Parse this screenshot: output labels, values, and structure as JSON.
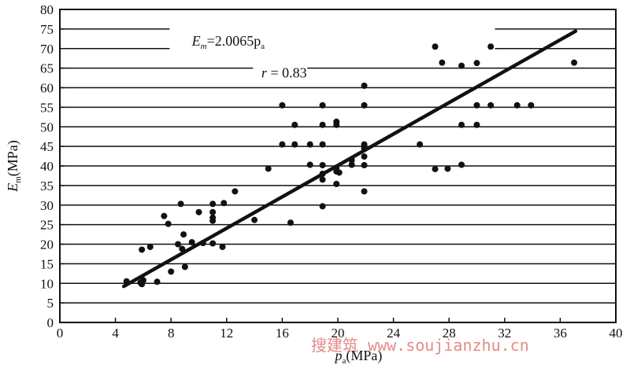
{
  "chart_data": {
    "type": "scatter",
    "xlabel": "p",
    "xlabel_sub": "a",
    "xlabel_unit": "(MPa)",
    "ylabel": "E",
    "ylabel_sub": "m",
    "ylabel_unit": "(MPa)",
    "xlim": [
      0,
      40
    ],
    "ylim": [
      0,
      80
    ],
    "x_ticks": [
      "0",
      "4",
      "8",
      "12",
      "16",
      "20",
      "24",
      "28",
      "32",
      "36",
      "40"
    ],
    "y_ticks": [
      "0",
      "5",
      "10",
      "15",
      "20",
      "25",
      "30",
      "35",
      "40",
      "45",
      "50",
      "55",
      "60",
      "65",
      "70",
      "75",
      "80"
    ],
    "grid": "horizontal",
    "annotations": {
      "equation": "E",
      "equation_sub": "m",
      "equation_rhs": "=2.0065p",
      "equation_rhs_sub": "a",
      "r_text": "r",
      "r_value": " = 0.83"
    },
    "fit_line": {
      "slope": 2.0065,
      "x_start": 4.6,
      "x_end": 37.1
    },
    "points": [
      [
        4.8,
        10.5
      ],
      [
        5.8,
        10.2
      ],
      [
        6.0,
        10.8
      ],
      [
        7.0,
        10.4
      ],
      [
        5.9,
        9.8
      ],
      [
        5.9,
        18.6
      ],
      [
        6.5,
        19.3
      ],
      [
        7.5,
        27.2
      ],
      [
        7.8,
        25.2
      ],
      [
        8.0,
        13.0
      ],
      [
        8.5,
        20.0
      ],
      [
        8.7,
        30.3
      ],
      [
        8.8,
        18.8
      ],
      [
        8.9,
        22.5
      ],
      [
        9.0,
        14.2
      ],
      [
        9.5,
        20.5
      ],
      [
        10.0,
        28.2
      ],
      [
        10.3,
        20.3
      ],
      [
        11.0,
        30.3
      ],
      [
        11.0,
        28.2
      ],
      [
        11.0,
        26.8
      ],
      [
        11.0,
        26.0
      ],
      [
        11.0,
        20.2
      ],
      [
        11.7,
        19.3
      ],
      [
        11.8,
        30.5
      ],
      [
        12.6,
        33.5
      ],
      [
        14.0,
        26.2
      ],
      [
        15.0,
        39.3
      ],
      [
        16.0,
        55.5
      ],
      [
        16.0,
        45.5
      ],
      [
        16.6,
        25.5
      ],
      [
        16.9,
        50.5
      ],
      [
        16.9,
        45.5
      ],
      [
        18.0,
        45.5
      ],
      [
        18.0,
        40.3
      ],
      [
        18.9,
        55.5
      ],
      [
        18.9,
        50.5
      ],
      [
        18.9,
        45.5
      ],
      [
        18.9,
        40.2
      ],
      [
        18.9,
        38.0
      ],
      [
        18.9,
        36.5
      ],
      [
        18.9,
        29.7
      ],
      [
        19.9,
        51.3
      ],
      [
        19.9,
        50.5
      ],
      [
        19.9,
        39.5
      ],
      [
        19.9,
        38.6
      ],
      [
        19.9,
        35.4
      ],
      [
        20.1,
        38.3
      ],
      [
        21.0,
        40.3
      ],
      [
        21.0,
        41.5
      ],
      [
        21.9,
        60.5
      ],
      [
        21.9,
        55.5
      ],
      [
        21.9,
        45.5
      ],
      [
        21.9,
        44.5
      ],
      [
        21.9,
        42.4
      ],
      [
        21.9,
        40.2
      ],
      [
        21.9,
        33.5
      ],
      [
        25.9,
        45.5
      ],
      [
        27.0,
        70.5
      ],
      [
        27.0,
        39.2
      ],
      [
        27.5,
        66.4
      ],
      [
        27.9,
        39.3
      ],
      [
        28.9,
        65.6
      ],
      [
        28.9,
        50.5
      ],
      [
        28.9,
        40.3
      ],
      [
        30.0,
        66.3
      ],
      [
        30.0,
        55.5
      ],
      [
        30.0,
        50.5
      ],
      [
        31.0,
        70.5
      ],
      [
        31.0,
        55.5
      ],
      [
        32.9,
        55.5
      ],
      [
        33.9,
        55.5
      ],
      [
        37.0,
        66.4
      ]
    ]
  },
  "watermark": "搜建筑 www.soujianzhu.cn"
}
